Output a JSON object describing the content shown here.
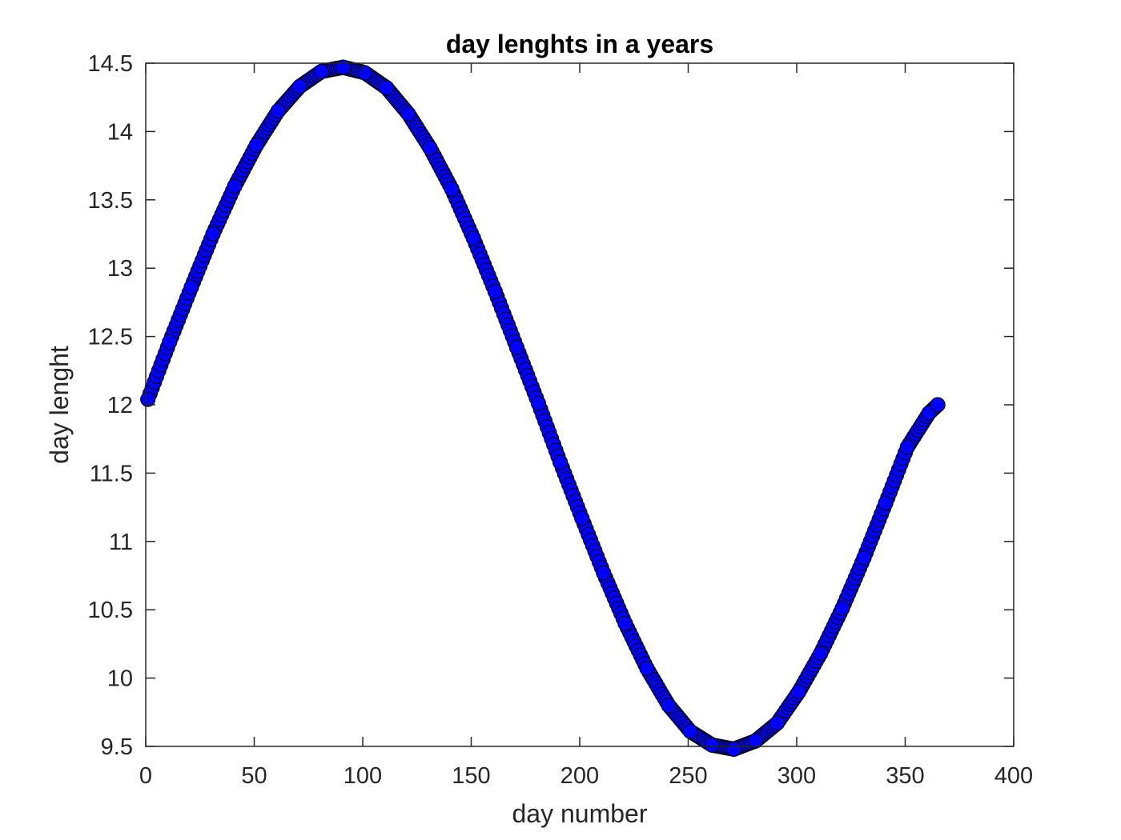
{
  "chart_data": {
    "type": "scatter",
    "title": "day lenghts in a years",
    "xlabel": "day number",
    "ylabel": "day lenght",
    "xlim": [
      0,
      400
    ],
    "ylim": [
      9.5,
      14.5
    ],
    "xticks": [
      "0",
      "50",
      "100",
      "150",
      "200",
      "250",
      "300",
      "350",
      "400"
    ],
    "yticks": [
      "9.5",
      "10",
      "10.5",
      "11",
      "11.5",
      "12",
      "12.5",
      "13",
      "13.5",
      "14",
      "14.5"
    ],
    "grid": false,
    "legend": "none",
    "marker": "circle",
    "colors": {
      "marker_fill": "#0000ff",
      "marker_edge": "#000000",
      "axes": "#262626"
    },
    "series": [
      {
        "x": [
          1,
          11,
          21,
          31,
          41,
          51,
          61,
          71,
          81,
          91,
          101,
          111,
          121,
          131,
          141,
          151,
          161,
          171,
          181,
          191,
          201,
          211,
          221,
          231,
          241,
          251,
          261,
          271,
          281,
          291,
          301,
          311,
          321,
          331,
          341,
          351,
          361,
          365
        ],
        "y": [
          12.04,
          12.46,
          12.86,
          13.25,
          13.6,
          13.9,
          14.15,
          14.33,
          14.44,
          14.47,
          14.43,
          14.32,
          14.13,
          13.88,
          13.58,
          13.22,
          12.83,
          12.42,
          12.01,
          11.58,
          11.17,
          10.77,
          10.4,
          10.07,
          9.8,
          9.61,
          9.51,
          9.48,
          9.54,
          9.67,
          9.9,
          10.18,
          10.51,
          10.88,
          11.28,
          11.69,
          11.94,
          12.0
        ]
      }
    ]
  }
}
